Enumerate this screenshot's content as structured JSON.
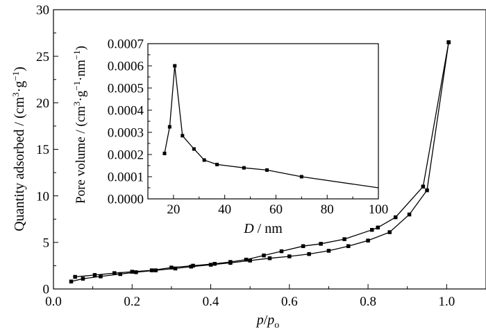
{
  "chart_data": [
    {
      "type": "line",
      "xlabel": {
        "p": "p",
        "slash": "/",
        "p2": "p",
        "sub": "o"
      },
      "ylabel": {
        "main": "Quantity adsorbed / (cm",
        "sup1": "3",
        "mid": "·g",
        "sup2": "−1",
        "close": ")"
      },
      "xlim": [
        0.0,
        1.1
      ],
      "ylim": [
        0,
        30
      ],
      "xticks": [
        0.0,
        0.2,
        0.4,
        0.6,
        0.8,
        1.0
      ],
      "xtick_labels": [
        "0.0",
        "0.2",
        "0.4",
        "0.6",
        "0.8",
        "1.0"
      ],
      "yticks": [
        0,
        5,
        10,
        15,
        20,
        25,
        30
      ],
      "ytick_labels": [
        "0",
        "5",
        "10",
        "15",
        "20",
        "25",
        "30"
      ],
      "grid": false,
      "color": "#000000",
      "marker": "square",
      "series": [
        {
          "x": [
            0.045,
            0.075,
            0.12,
            0.17,
            0.21,
            0.26,
            0.31,
            0.35,
            0.4,
            0.45,
            0.5,
            0.55,
            0.6,
            0.65,
            0.7,
            0.75,
            0.8,
            0.855,
            0.905,
            0.95,
            1.005
          ],
          "y": [
            0.8,
            1.1,
            1.35,
            1.6,
            1.8,
            2.0,
            2.2,
            2.4,
            2.6,
            2.8,
            3.05,
            3.3,
            3.5,
            3.75,
            4.1,
            4.6,
            5.2,
            6.1,
            8.0,
            10.6,
            26.5
          ]
        },
        {
          "x": [
            0.055,
            0.105,
            0.155,
            0.2,
            0.25,
            0.3,
            0.355,
            0.41,
            0.45,
            0.49,
            0.535,
            0.58,
            0.635,
            0.68,
            0.74,
            0.81,
            0.825,
            0.87,
            0.94,
            1.005
          ],
          "y": [
            1.3,
            1.5,
            1.7,
            1.85,
            2.0,
            2.3,
            2.5,
            2.7,
            2.9,
            3.15,
            3.6,
            4.05,
            4.6,
            4.85,
            5.35,
            6.35,
            6.6,
            7.7,
            11.0,
            26.5
          ]
        }
      ]
    },
    {
      "type": "line",
      "xlabel": {
        "italic": "D",
        "rest": " / nm"
      },
      "ylabel": {
        "main": "Pore volume / (cm",
        "sup1": "3",
        "mid": "·g",
        "sup2": "−1",
        "mid2": "·nm",
        "sup3": "−1",
        "close": ")"
      },
      "xlim": [
        10,
        100
      ],
      "ylim": [
        0.0,
        0.0007
      ],
      "xticks": [
        20,
        40,
        60,
        80,
        100
      ],
      "xtick_labels": [
        "20",
        "40",
        "60",
        "80",
        "100"
      ],
      "yticks": [
        0.0,
        0.0001,
        0.0002,
        0.0003,
        0.0004,
        0.0005,
        0.0006,
        0.0007
      ],
      "ytick_labels": [
        "0.0000",
        "0.0001",
        "0.0002",
        "0.0003",
        "0.0004",
        "0.0005",
        "0.0006",
        "0.0007"
      ],
      "grid": false,
      "color": "#000000",
      "marker": "square",
      "series": [
        {
          "x": [
            16.5,
            18.5,
            20.5,
            23.5,
            28.0,
            32.0,
            37.0,
            47.5,
            56.5,
            70.0
          ],
          "y": [
            0.000205,
            0.000325,
            0.0006,
            0.000285,
            0.000225,
            0.000175,
            0.000155,
            0.00014,
            0.00013,
            0.0001
          ],
          "line_extends_to": [
            100,
            5e-05
          ]
        }
      ]
    }
  ]
}
